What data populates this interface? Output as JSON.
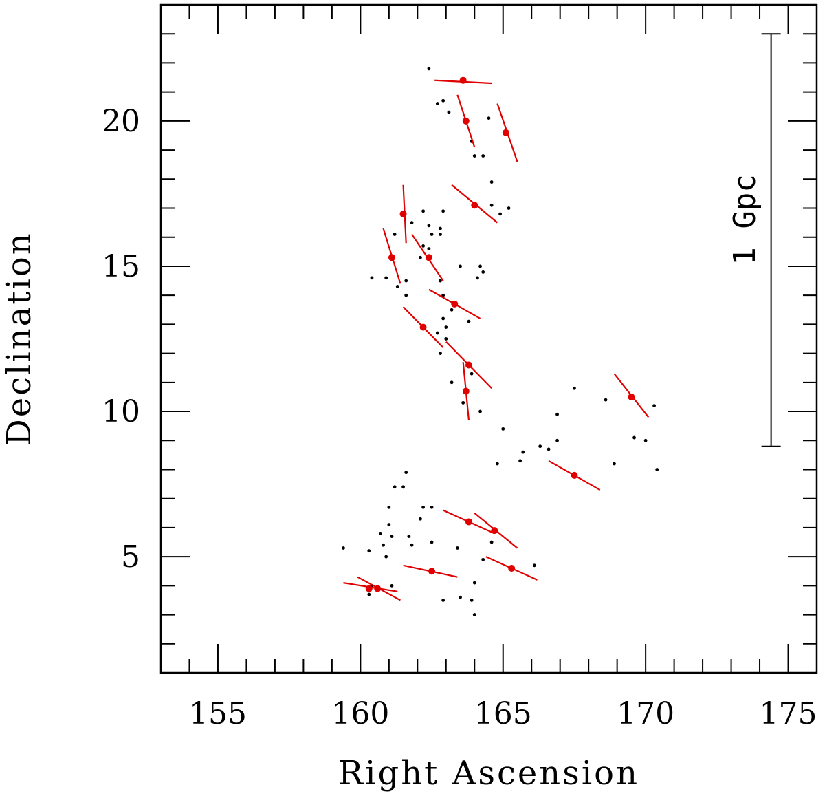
{
  "chart_data": {
    "type": "scatter",
    "title": "",
    "xlabel": "Right Ascension",
    "ylabel": "Declination",
    "xlim": [
      153,
      176
    ],
    "ylim": [
      1,
      24
    ],
    "x_ticks": [
      {
        "value": 155,
        "label": "155"
      },
      {
        "value": 160,
        "label": "160"
      },
      {
        "value": 165,
        "label": "165"
      },
      {
        "value": 170,
        "label": "170"
      },
      {
        "value": 175,
        "label": "175"
      }
    ],
    "y_ticks": [
      {
        "value": 5,
        "label": "5"
      },
      {
        "value": 10,
        "label": "10"
      },
      {
        "value": 15,
        "label": "15"
      },
      {
        "value": 20,
        "label": "20"
      }
    ],
    "scale_bar": {
      "label": "1 Gpc",
      "ra": 174.4,
      "dec_from": 8.8,
      "dec_to": 23.0
    },
    "galaxies": {
      "name": "galaxies",
      "color": "#000000",
      "points": [
        [
          162.4,
          21.8
        ],
        [
          162.9,
          20.7
        ],
        [
          162.7,
          20.6
        ],
        [
          163.1,
          20.3
        ],
        [
          164.5,
          20.1
        ],
        [
          163.9,
          19.3
        ],
        [
          164.0,
          18.8
        ],
        [
          164.3,
          18.8
        ],
        [
          164.6,
          17.9
        ],
        [
          162.9,
          16.9
        ],
        [
          162.2,
          16.9
        ],
        [
          164.6,
          17.1
        ],
        [
          164.9,
          16.8
        ],
        [
          165.2,
          17.0
        ],
        [
          161.8,
          16.5
        ],
        [
          162.4,
          16.4
        ],
        [
          162.8,
          16.3
        ],
        [
          161.2,
          16.1
        ],
        [
          162.5,
          16.1
        ],
        [
          162.8,
          16.1
        ],
        [
          162.2,
          15.7
        ],
        [
          162.4,
          15.6
        ],
        [
          162.1,
          15.3
        ],
        [
          163.5,
          15.0
        ],
        [
          164.2,
          15.0
        ],
        [
          164.3,
          14.8
        ],
        [
          164.1,
          14.6
        ],
        [
          160.4,
          14.6
        ],
        [
          160.9,
          14.6
        ],
        [
          161.6,
          14.5
        ],
        [
          162.8,
          14.5
        ],
        [
          161.3,
          14.3
        ],
        [
          161.6,
          14.0
        ],
        [
          162.9,
          14.0
        ],
        [
          163.2,
          13.5
        ],
        [
          163.8,
          13.1
        ],
        [
          162.9,
          13.2
        ],
        [
          163.0,
          12.9
        ],
        [
          162.7,
          12.7
        ],
        [
          163.0,
          12.5
        ],
        [
          162.8,
          12.0
        ],
        [
          163.9,
          11.3
        ],
        [
          163.2,
          11.0
        ],
        [
          163.6,
          10.3
        ],
        [
          164.2,
          10.0
        ],
        [
          165.0,
          9.4
        ],
        [
          166.9,
          9.9
        ],
        [
          167.5,
          10.8
        ],
        [
          168.6,
          10.4
        ],
        [
          169.6,
          9.1
        ],
        [
          170.0,
          9.0
        ],
        [
          170.3,
          10.2
        ],
        [
          166.3,
          8.8
        ],
        [
          166.6,
          8.7
        ],
        [
          166.9,
          9.0
        ],
        [
          165.7,
          8.6
        ],
        [
          165.6,
          8.3
        ],
        [
          164.8,
          8.2
        ],
        [
          168.9,
          8.2
        ],
        [
          170.4,
          8.0
        ],
        [
          161.6,
          7.9
        ],
        [
          161.2,
          7.4
        ],
        [
          161.5,
          7.4
        ],
        [
          161.0,
          6.7
        ],
        [
          162.2,
          6.7
        ],
        [
          162.5,
          6.7
        ],
        [
          162.1,
          6.3
        ],
        [
          161.0,
          6.1
        ],
        [
          164.7,
          5.9
        ],
        [
          160.7,
          5.8
        ],
        [
          161.1,
          5.7
        ],
        [
          161.7,
          5.7
        ],
        [
          164.6,
          5.5
        ],
        [
          161.8,
          5.4
        ],
        [
          162.5,
          5.5
        ],
        [
          160.8,
          5.4
        ],
        [
          163.4,
          5.3
        ],
        [
          159.4,
          5.3
        ],
        [
          160.3,
          5.2
        ],
        [
          160.9,
          5.0
        ],
        [
          164.3,
          4.9
        ],
        [
          166.1,
          4.7
        ],
        [
          160.4,
          4.0
        ],
        [
          161.1,
          4.0
        ],
        [
          160.3,
          3.7
        ],
        [
          164.0,
          4.1
        ],
        [
          162.9,
          3.5
        ],
        [
          163.5,
          3.6
        ],
        [
          163.9,
          3.5
        ],
        [
          164.0,
          3.0
        ]
      ]
    },
    "vectors": {
      "name": "orientation vectors",
      "color": "#e00000",
      "points": [
        {
          "ra": 163.6,
          "dec": 21.4,
          "x0": 162.6,
          "y0": 21.4,
          "x1": 164.6,
          "y1": 21.3
        },
        {
          "ra": 163.7,
          "dec": 20.0,
          "x0": 163.4,
          "y0": 20.9,
          "x1": 164.0,
          "y1": 19.1
        },
        {
          "ra": 165.1,
          "dec": 19.6,
          "x0": 164.8,
          "y0": 20.6,
          "x1": 165.5,
          "y1": 18.6
        },
        {
          "ra": 164.0,
          "dec": 17.1,
          "x0": 163.2,
          "y0": 17.8,
          "x1": 164.8,
          "y1": 16.5
        },
        {
          "ra": 161.5,
          "dec": 16.8,
          "x0": 161.5,
          "y0": 17.8,
          "x1": 161.6,
          "y1": 15.8
        },
        {
          "ra": 161.1,
          "dec": 15.3,
          "x0": 160.8,
          "y0": 16.3,
          "x1": 161.4,
          "y1": 14.4
        },
        {
          "ra": 162.4,
          "dec": 15.3,
          "x0": 161.8,
          "y0": 16.1,
          "x1": 162.9,
          "y1": 14.5
        },
        {
          "ra": 163.3,
          "dec": 13.7,
          "x0": 162.4,
          "y0": 14.2,
          "x1": 164.2,
          "y1": 13.2
        },
        {
          "ra": 162.2,
          "dec": 12.9,
          "x0": 161.5,
          "y0": 13.6,
          "x1": 162.9,
          "y1": 12.2
        },
        {
          "ra": 163.8,
          "dec": 11.6,
          "x0": 163.0,
          "y0": 12.4,
          "x1": 164.6,
          "y1": 10.8
        },
        {
          "ra": 163.7,
          "dec": 10.7,
          "x0": 163.6,
          "y0": 11.7,
          "x1": 163.8,
          "y1": 9.7
        },
        {
          "ra": 169.5,
          "dec": 10.5,
          "x0": 168.9,
          "y0": 11.3,
          "x1": 170.1,
          "y1": 9.8
        },
        {
          "ra": 167.5,
          "dec": 7.8,
          "x0": 166.6,
          "y0": 8.3,
          "x1": 168.4,
          "y1": 7.3
        },
        {
          "ra": 163.8,
          "dec": 6.2,
          "x0": 162.9,
          "y0": 6.6,
          "x1": 164.7,
          "y1": 5.8
        },
        {
          "ra": 164.7,
          "dec": 5.9,
          "x0": 164.0,
          "y0": 6.5,
          "x1": 165.5,
          "y1": 5.3
        },
        {
          "ra": 162.5,
          "dec": 4.5,
          "x0": 161.5,
          "y0": 4.7,
          "x1": 163.4,
          "y1": 4.3
        },
        {
          "ra": 165.3,
          "dec": 4.6,
          "x0": 164.4,
          "y0": 5.0,
          "x1": 166.2,
          "y1": 4.2
        },
        {
          "ra": 160.3,
          "dec": 3.9,
          "x0": 159.4,
          "y0": 4.1,
          "x1": 161.3,
          "y1": 3.8
        },
        {
          "ra": 160.6,
          "dec": 3.9,
          "x0": 159.9,
          "y0": 4.3,
          "x1": 161.4,
          "y1": 3.5
        }
      ]
    }
  }
}
